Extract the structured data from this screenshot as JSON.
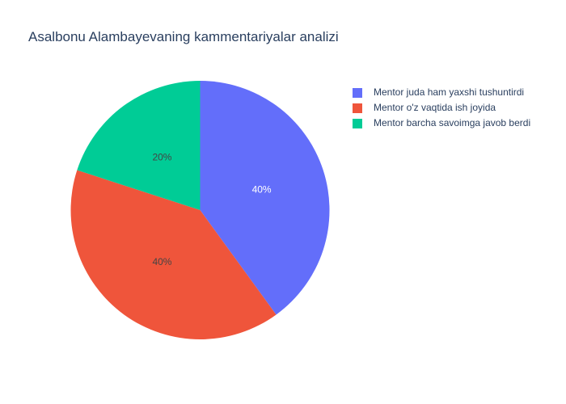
{
  "chart_data": {
    "type": "pie",
    "title": "Asalbonu Alambayevaning kammentariyalar analizi",
    "labels": [
      "Mentor juda ham yaxshi tushuntirdi",
      " Mentor o'z vaqtida ish joyida",
      "Mentor barcha savoimga javob berdi"
    ],
    "values": [
      40,
      40,
      20
    ],
    "percent_labels": [
      "40%",
      "40%",
      "20%"
    ],
    "colors": [
      "#636efa",
      "#EF553B",
      "#00cc96"
    ],
    "label_colors": [
      "#ffffff",
      "#444444",
      "#444444"
    ],
    "direction": "clockwise",
    "start": "top",
    "legend_position": "top-right"
  }
}
